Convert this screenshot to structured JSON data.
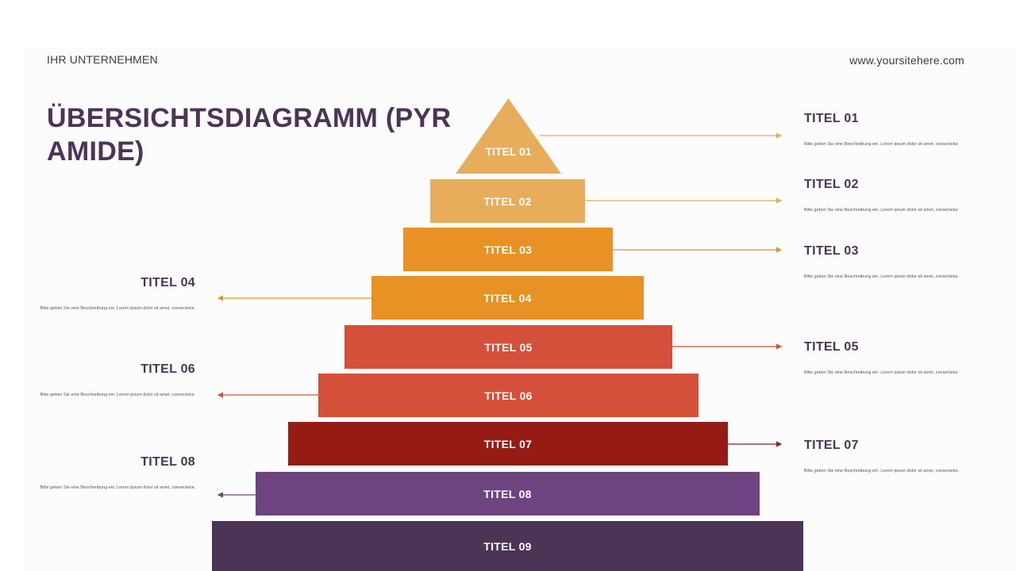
{
  "header": {
    "company": "IHR UNTERNEHMEN",
    "website": "www.yoursitehere.com"
  },
  "title": "ÜBERSICHTSDIAGRAMM (PYRAMIDE)",
  "pyramid": [
    {
      "label": "TITEL 01",
      "color": "#e7ad5a"
    },
    {
      "label": "TITEL 02",
      "color": "#e7ad5a"
    },
    {
      "label": "TITEL 03",
      "color": "#e89225"
    },
    {
      "label": "TITEL 04",
      "color": "#e89225"
    },
    {
      "label": "TITEL 05",
      "color": "#d5503a"
    },
    {
      "label": "TITEL 06",
      "color": "#d5503a"
    },
    {
      "label": "TITEL 07",
      "color": "#961b14"
    },
    {
      "label": "TITEL 08",
      "color": "#6e4480"
    },
    {
      "label": "TITEL 09",
      "color": "#4b3456"
    }
  ],
  "callouts": [
    {
      "title": "TITEL 01",
      "desc": "Bitte geben Sie eine Beschreibung ein. Lorem ipsum dolor sit amet, consectetur.",
      "side": "right"
    },
    {
      "title": "TITEL 02",
      "desc": "Bitte geben Sie eine Beschreibung ein. Lorem ipsum dolor sit amet, consectetur.",
      "side": "right"
    },
    {
      "title": "TITEL 03",
      "desc": "Bitte geben Sie eine Beschreibung ein. Lorem ipsum dolor sit amet, consectetur.",
      "side": "right"
    },
    {
      "title": "TITEL 04",
      "desc": "Bitte geben Sie eine Beschreibung ein. Lorem ipsum dolor sit amet, consectetur.",
      "side": "left"
    },
    {
      "title": "TITEL 05",
      "desc": "Bitte geben Sie eine Beschreibung ein. Lorem ipsum dolor sit amet, consectetur.",
      "side": "right"
    },
    {
      "title": "TITEL 06",
      "desc": "Bitte geben Sie eine Beschreibung ein. Lorem ipsum dolor sit amet, consectetur.",
      "side": "left"
    },
    {
      "title": "TITEL 07",
      "desc": "Bitte geben Sie eine Beschreibung ein. Lorem ipsum dolor sit amet, consectetur.",
      "side": "right"
    },
    {
      "title": "TITEL 08",
      "desc": "Bitte geben Sie eine Beschreibung ein. Lorem ipsum dolor sit amet, consectetur.",
      "side": "left"
    }
  ]
}
